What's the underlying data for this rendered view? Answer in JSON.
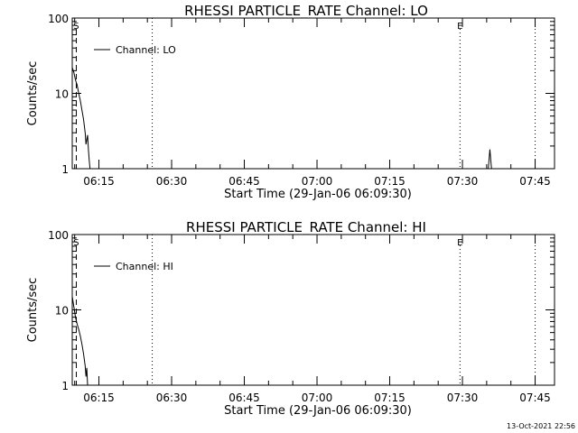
{
  "chart_data": [
    {
      "type": "line",
      "title": "RHESSI PARTICLE_RATE Channel: LO",
      "xlabel": "Start Time (29-Jan-06 06:09:30)",
      "ylabel": "Counts/sec",
      "y_scale": "log",
      "ylim": [
        1,
        100
      ],
      "xlim": [
        "06:09:30",
        "07:49:00"
      ],
      "x_ticks": [
        "06:15",
        "06:30",
        "06:45",
        "07:00",
        "07:15",
        "07:30",
        "07:45"
      ],
      "y_ticks": [
        "1",
        "10",
        "100"
      ],
      "series": [
        {
          "name": "Channel: LO",
          "points": [
            [
              "06:09:30",
              22
            ],
            [
              "06:09:50",
              19
            ],
            [
              "06:10:10",
              15
            ],
            [
              "06:10:30",
              13
            ],
            [
              "06:10:50",
              10
            ],
            [
              "06:11:10",
              8
            ],
            [
              "06:11:30",
              6
            ],
            [
              "06:11:50",
              4.5
            ],
            [
              "06:12:10",
              3
            ],
            [
              "06:12:20",
              2.1
            ],
            [
              "06:12:40",
              2.8
            ],
            [
              "06:12:50",
              1.8
            ],
            [
              "06:13:00",
              1.3
            ],
            [
              "06:13:10",
              1.0
            ],
            [
              "07:35:20",
              1.0
            ],
            [
              "07:35:40",
              1.8
            ],
            [
              "07:36:00",
              1.0
            ]
          ]
        }
      ],
      "markers": [
        {
          "label": "S",
          "time": "06:10:20",
          "style": "dashed"
        },
        {
          "label": "E",
          "time": "07:29:30",
          "style": "dotted"
        }
      ],
      "dotted_lines": [
        "06:26:00",
        "07:45:00"
      ],
      "legend_position": "top-left"
    },
    {
      "type": "line",
      "title": "RHESSI PARTICLE_RATE Channel: HI",
      "xlabel": "Start Time (29-Jan-06 06:09:30)",
      "ylabel": "Counts/sec",
      "y_scale": "log",
      "ylim": [
        1,
        100
      ],
      "xlim": [
        "06:09:30",
        "07:49:00"
      ],
      "x_ticks": [
        "06:15",
        "06:30",
        "06:45",
        "07:00",
        "07:15",
        "07:30",
        "07:45"
      ],
      "y_ticks": [
        "1",
        "10",
        "100"
      ],
      "series": [
        {
          "name": "Channel: HI",
          "points": [
            [
              "06:09:30",
              15
            ],
            [
              "06:09:50",
              11
            ],
            [
              "06:10:10",
              8
            ],
            [
              "06:10:30",
              6.5
            ],
            [
              "06:10:50",
              5.5
            ],
            [
              "06:11:10",
              4.5
            ],
            [
              "06:11:30",
              3.5
            ],
            [
              "06:11:50",
              2.6
            ],
            [
              "06:12:10",
              1.8
            ],
            [
              "06:12:20",
              1.3
            ],
            [
              "06:12:30",
              1.7
            ],
            [
              "06:12:40",
              1.0
            ]
          ]
        }
      ],
      "markers": [
        {
          "label": "S",
          "time": "06:10:20",
          "style": "dashed"
        },
        {
          "label": "E",
          "time": "07:29:30",
          "style": "dotted"
        }
      ],
      "dotted_lines": [
        "06:26:00",
        "07:45:00"
      ],
      "legend_position": "top-left"
    }
  ],
  "timestamp": "13-Oct-2021 22:56"
}
